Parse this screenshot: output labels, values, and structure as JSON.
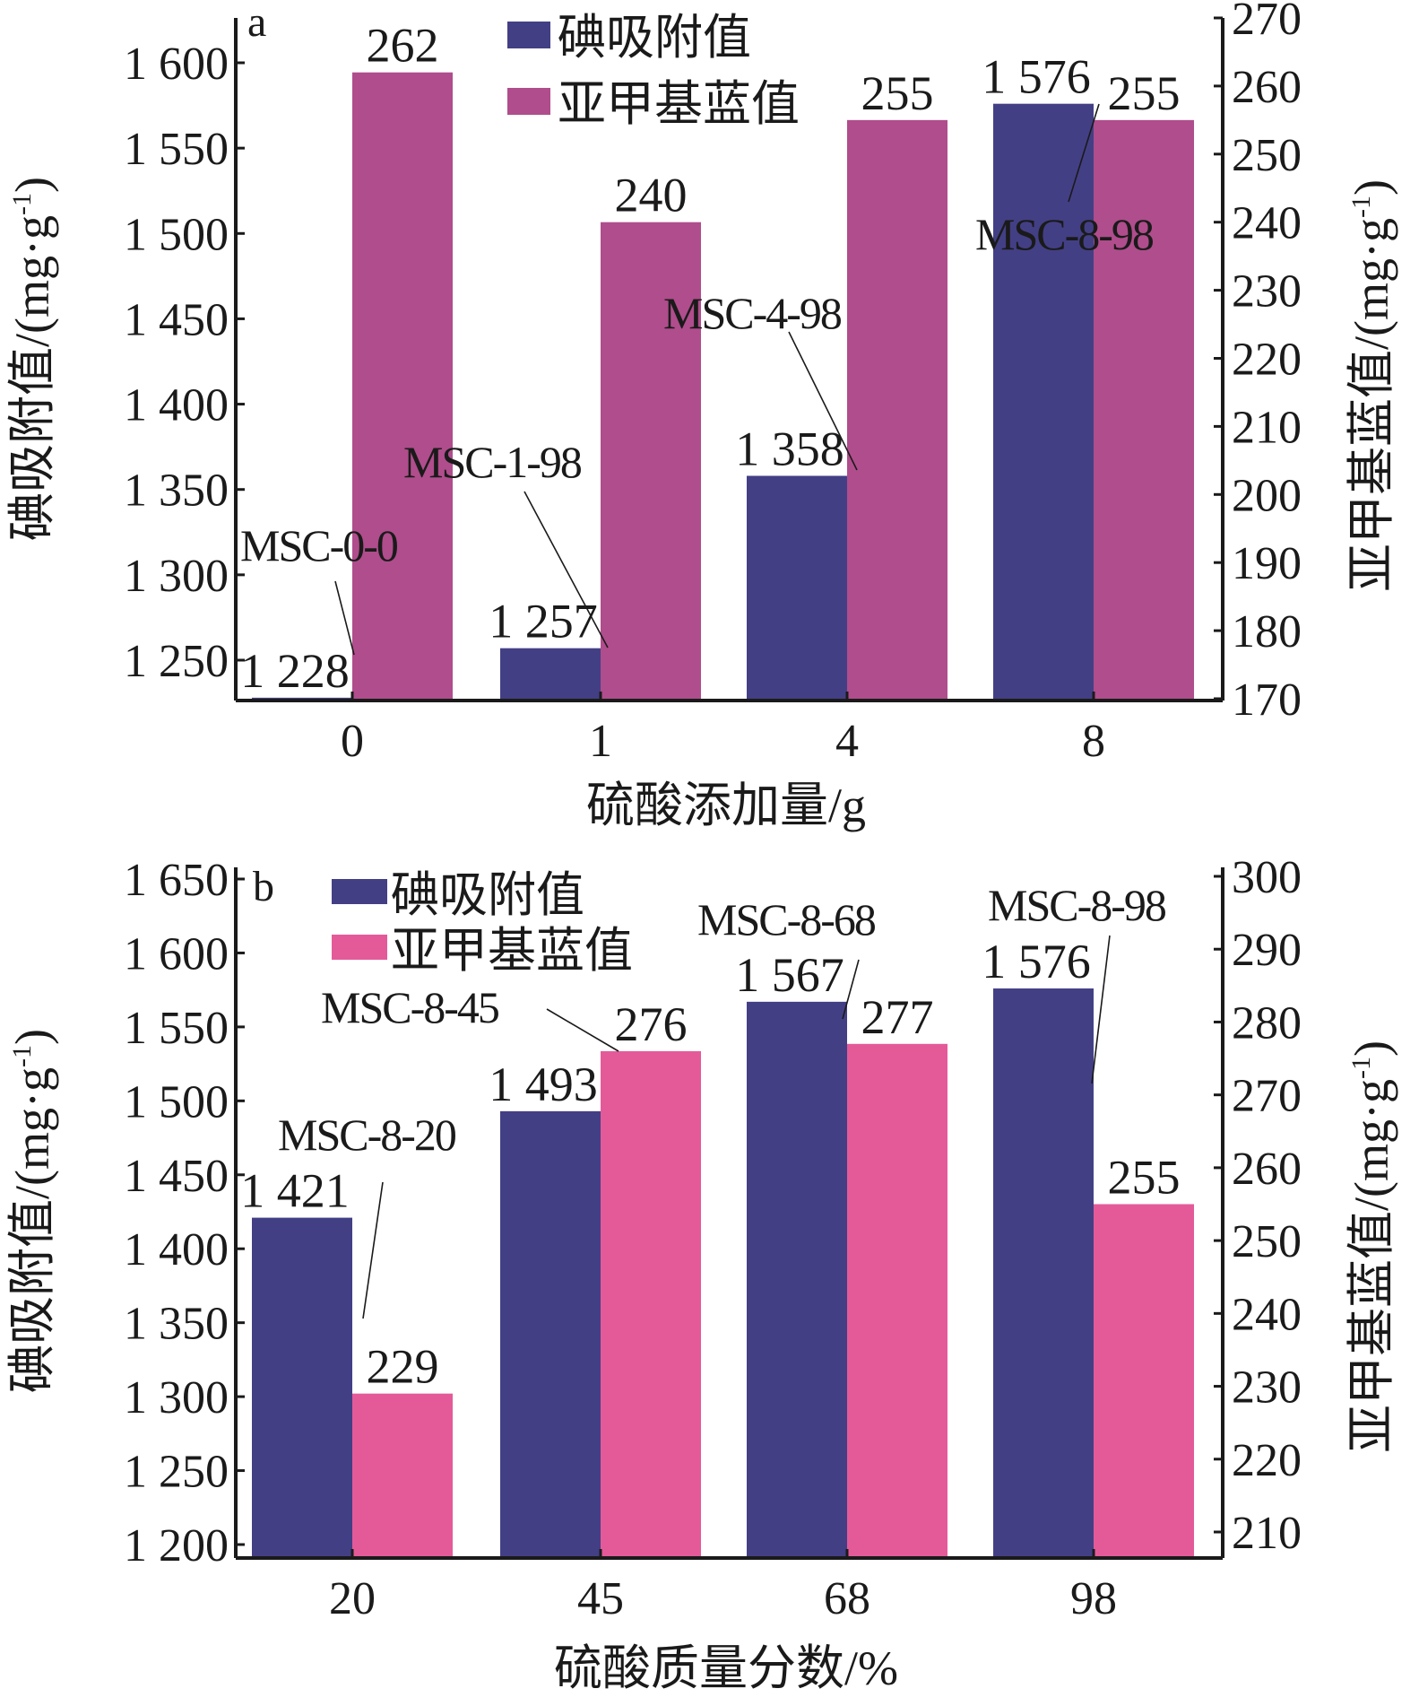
{
  "chart_data": [
    {
      "type": "bar",
      "panel": "a",
      "xlabel": "硫酸添加量/g",
      "ylabel_left": "碘吸附值/(mg·g",
      "ylabel_right": "亚甲基蓝值/(mg·g",
      "ylabel_sup": "-1",
      "ylabel_close": ")",
      "categories": [
        "0",
        "1",
        "4",
        "8"
      ],
      "left_axis": {
        "ylim": [
          1220,
          1620
        ],
        "ticks": [
          1250,
          1300,
          1350,
          1400,
          1450,
          1500,
          1550,
          1600
        ],
        "tick_labels": [
          "1 250",
          "1 300",
          "1 350",
          "1 400",
          "1 450",
          "1 500",
          "1 550",
          "1 600"
        ]
      },
      "right_axis": {
        "ylim": [
          170,
          270
        ],
        "ticks": [
          170,
          180,
          190,
          200,
          210,
          220,
          230,
          240,
          250,
          260,
          270
        ],
        "tick_labels": [
          "170",
          "180",
          "190",
          "200",
          "210",
          "220",
          "230",
          "240",
          "250",
          "260",
          "270"
        ]
      },
      "series": [
        {
          "name": "碘吸附值",
          "axis": "left",
          "color": "#433f85",
          "values": [
            1228,
            1257,
            1358,
            1576
          ],
          "labels": [
            "1 228",
            "1 257",
            "1 358",
            "1 576"
          ]
        },
        {
          "name": "亚甲基蓝值",
          "axis": "right",
          "color": "#b04d8c",
          "values": [
            262,
            240,
            255,
            255
          ],
          "labels": [
            "262",
            "240",
            "255",
            "255"
          ]
        }
      ],
      "annotations": [
        "MSC-0-0",
        "MSC-1-98",
        "MSC-4-98",
        "MSC-8-98"
      ],
      "legend_position": "top-center"
    },
    {
      "type": "bar",
      "panel": "b",
      "xlabel": "硫酸质量分数/%",
      "ylabel_left": "碘吸附值/(mg·g",
      "ylabel_right": "亚甲基蓝值/(mg·g",
      "ylabel_sup": "-1",
      "ylabel_close": ")",
      "categories": [
        "20",
        "45",
        "68",
        "98"
      ],
      "left_axis": {
        "ylim": [
          1200,
          1650
        ],
        "ticks": [
          1200,
          1250,
          1300,
          1350,
          1400,
          1450,
          1500,
          1550,
          1600,
          1650
        ],
        "tick_labels": [
          "1 200",
          "1 250",
          "1 300",
          "1 350",
          "1 400",
          "1 450",
          "1 500",
          "1 550",
          "1 600",
          "1 650"
        ]
      },
      "right_axis": {
        "ylim": [
          210,
          300
        ],
        "ticks": [
          210,
          220,
          230,
          240,
          250,
          260,
          270,
          280,
          290,
          300
        ],
        "tick_labels": [
          "210",
          "220",
          "230",
          "240",
          "250",
          "260",
          "270",
          "280",
          "290",
          "300"
        ]
      },
      "series": [
        {
          "name": "碘吸附值",
          "axis": "left",
          "color": "#433f85",
          "values": [
            1421,
            1493,
            1567,
            1576
          ],
          "labels": [
            "1 421",
            "1 493",
            "1 567",
            "1 576"
          ]
        },
        {
          "name": "亚甲基蓝值",
          "axis": "right",
          "color": "#e45a99",
          "values": [
            229,
            276,
            277,
            255
          ],
          "labels": [
            "229",
            "276",
            "277",
            "255"
          ]
        }
      ],
      "annotations": [
        "MSC-8-20",
        "MSC-8-45",
        "MSC-8-68",
        "MSC-8-98"
      ],
      "legend_position": "top-left"
    }
  ]
}
